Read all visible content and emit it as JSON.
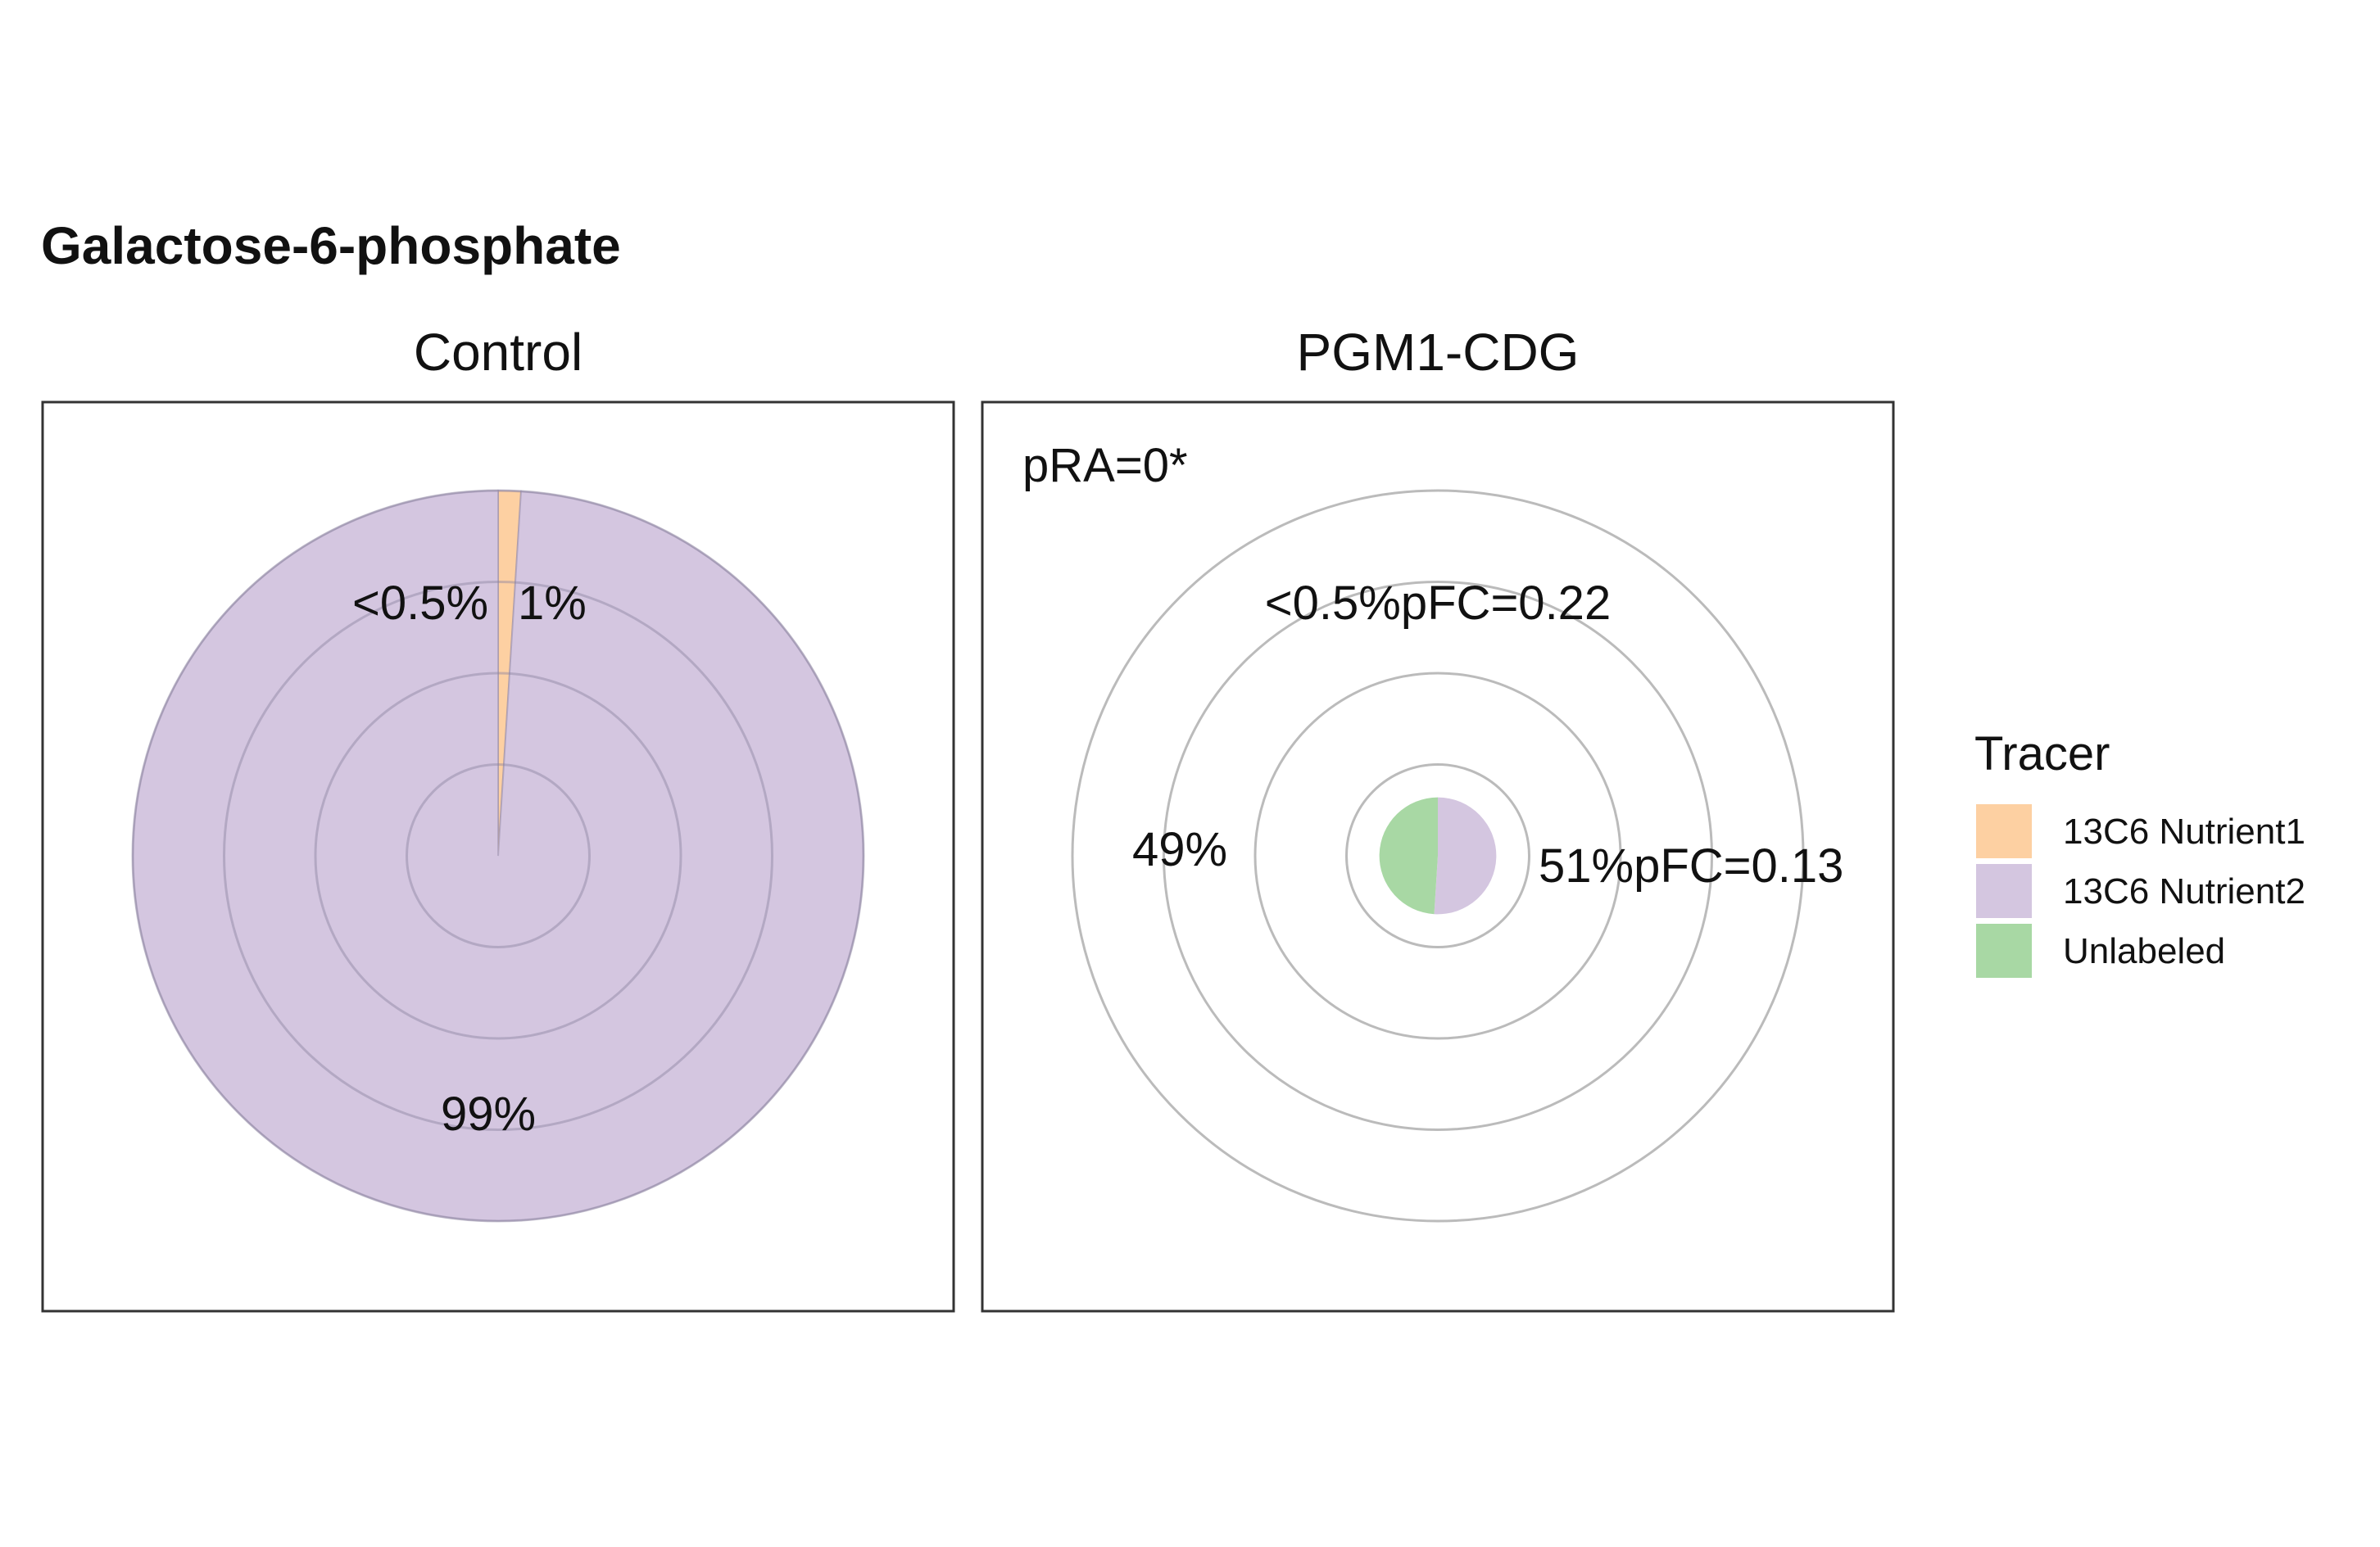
{
  "chart_data": {
    "type": "pie",
    "title": "Galactose-6-phosphate",
    "colors": {
      "13C6 Nutrient1": "#fdd0a2",
      "13C6 Nutrient2": "#d4c6e0",
      "Unlabeled": "#a8d8a4",
      "grid": "#bbbbbb",
      "panel_border": "#333333"
    },
    "legend": {
      "title": "Tracer",
      "placement": "right",
      "items": [
        "13C6 Nutrient1",
        "13C6 Nutrient2",
        "Unlabeled"
      ]
    },
    "panels": [
      {
        "name": "Control",
        "relative_size": 1.0,
        "slices": [
          {
            "tracer": "13C6 Nutrient1",
            "value": 1
          },
          {
            "tracer": "13C6 Nutrient2",
            "value": 99
          },
          {
            "tracer": "Unlabeled",
            "value": 0
          }
        ],
        "labels": [
          "<0.5%",
          "1%",
          "99%"
        ]
      },
      {
        "name": "PGM1-CDG",
        "relative_size": 0.16,
        "annotation": "pRA=0*",
        "slices": [
          {
            "tracer": "13C6 Nutrient1",
            "value": 0
          },
          {
            "tracer": "13C6 Nutrient2",
            "value": 51
          },
          {
            "tracer": "Unlabeled",
            "value": 49
          }
        ],
        "labels": [
          "<0.5%pFC=0.22",
          "49%",
          "51%pFC=0.13"
        ]
      }
    ]
  }
}
